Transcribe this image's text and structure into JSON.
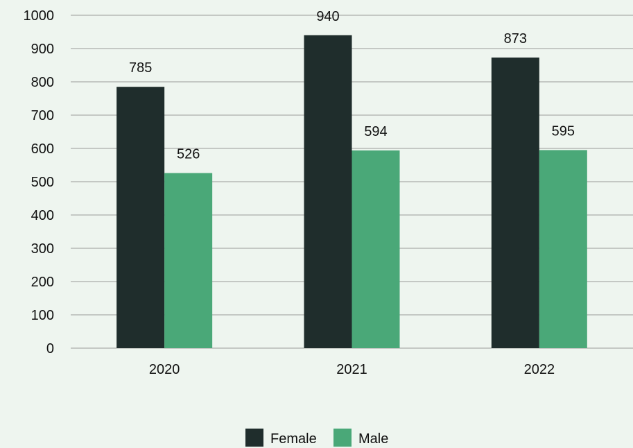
{
  "chart_data": {
    "type": "bar",
    "categories": [
      "2020",
      "2021",
      "2022"
    ],
    "series": [
      {
        "name": "Female",
        "values": [
          785,
          940,
          873
        ],
        "color": "#1f2d2c"
      },
      {
        "name": "Male",
        "values": [
          526,
          594,
          595
        ],
        "color": "#4aa878"
      }
    ],
    "ylim": [
      0,
      1000
    ],
    "yticks": [
      0,
      100,
      200,
      300,
      400,
      500,
      600,
      700,
      800,
      900,
      1000
    ],
    "grid": true,
    "data_labels": true,
    "legend_position": "bottom",
    "title": "",
    "xlabel": "",
    "ylabel": ""
  },
  "colors": {
    "background": "#eef5ef",
    "grid": "#9a9a9a"
  }
}
